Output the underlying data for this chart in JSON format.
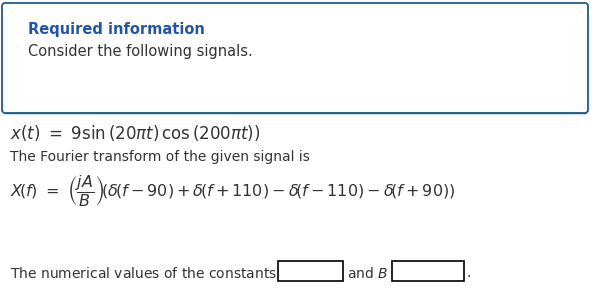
{
  "box_text_bold": "Required information",
  "box_text_normal": "Consider the following signals.",
  "box_edge_color": "#1F5C8B",
  "box_bg": "#FFFFFF",
  "text_color_blue": "#2255AA",
  "text_color_teal": "#3A7CA5",
  "text_color_black": "#222222",
  "text_color_dark": "#333333",
  "figsize": [
    5.95,
    3.08
  ],
  "dpi": 100
}
